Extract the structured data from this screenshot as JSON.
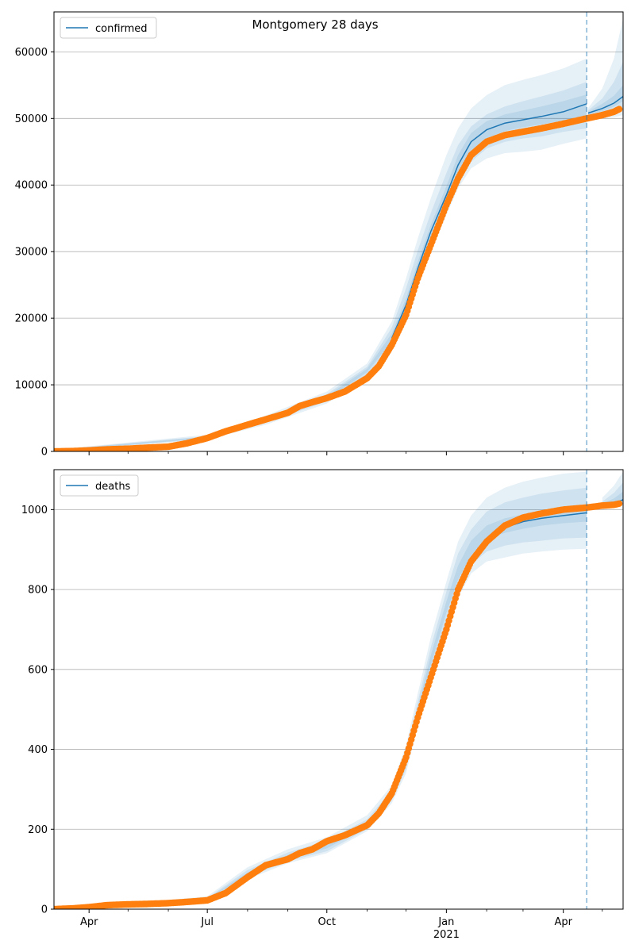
{
  "figure": {
    "title": "Montgomery 28 days",
    "colors": {
      "model_line": "#1f77b4",
      "band": "#1f77b4",
      "observed": "#ff7f0e",
      "grid": "#b0b0b0",
      "forecast_marker": "#1f77b4"
    },
    "x_axis": {
      "tick_labels": [
        {
          "date": "2020-04-01",
          "label": "Apr",
          "sublabel": ""
        },
        {
          "date": "2020-07-01",
          "label": "Jul",
          "sublabel": ""
        },
        {
          "date": "2020-10-01",
          "label": "Oct",
          "sublabel": ""
        },
        {
          "date": "2021-01-01",
          "label": "Jan",
          "sublabel": "2021"
        },
        {
          "date": "2021-04-01",
          "label": "Apr",
          "sublabel": ""
        }
      ],
      "minor_ticks": [
        "2020-05-01",
        "2020-06-01",
        "2020-08-01",
        "2020-09-01",
        "2020-11-01",
        "2020-12-01",
        "2021-02-01",
        "2021-03-01",
        "2021-05-01"
      ]
    }
  },
  "chart_data": [
    {
      "type": "line",
      "legend": "confirmed",
      "legend_position": "top-left",
      "xlim": [
        "2020-03-05",
        "2021-05-17"
      ],
      "ylim": [
        0,
        66000
      ],
      "yticks": [
        0,
        10000,
        20000,
        30000,
        40000,
        50000,
        60000
      ],
      "grid": "horizontal",
      "forecast_start": "2021-04-19",
      "model": {
        "x": [
          "2020-11-20",
          "2020-12-01",
          "2020-12-10",
          "2020-12-20",
          "2021-01-01",
          "2021-01-10",
          "2021-01-20",
          "2021-02-01",
          "2021-02-15",
          "2021-03-01",
          "2021-03-15",
          "2021-04-01",
          "2021-04-10",
          "2021-04-19",
          "2021-04-20",
          "2021-05-01",
          "2021-05-10",
          "2021-05-17"
        ],
        "y": [
          17000,
          22000,
          27500,
          33000,
          38500,
          43000,
          46500,
          48300,
          49300,
          49800,
          50300,
          51000,
          51600,
          52200,
          50800,
          51500,
          52300,
          53300
        ]
      },
      "bands": [
        {
          "x": [
            "2020-03-05",
            "2020-07-01",
            "2020-08-15",
            "2020-10-01",
            "2020-11-01",
            "2020-11-20",
            "2020-12-01",
            "2020-12-10",
            "2020-12-20",
            "2021-01-01",
            "2021-01-10",
            "2021-01-20",
            "2021-02-01",
            "2021-02-15",
            "2021-03-01",
            "2021-03-15",
            "2021-04-01",
            "2021-04-19",
            "2021-04-20",
            "2021-05-01",
            "2021-05-10",
            "2021-05-17"
          ],
          "lower": [
            0,
            1800,
            4000,
            7200,
            11000,
            15500,
            20000,
            25000,
            30000,
            35500,
            39500,
            42500,
            44000,
            44800,
            45000,
            45300,
            46200,
            47000,
            49800,
            50000,
            50200,
            50500
          ],
          "upper": [
            250,
            2500,
            5400,
            9000,
            13200,
            19500,
            26000,
            32000,
            38000,
            44500,
            48500,
            51500,
            53500,
            55000,
            55800,
            56500,
            57500,
            59000,
            51500,
            54500,
            59000,
            65000
          ]
        },
        {
          "x": [
            "2020-03-05",
            "2020-07-01",
            "2020-08-15",
            "2020-10-01",
            "2020-11-01",
            "2020-11-20",
            "2020-12-01",
            "2020-12-10",
            "2020-12-20",
            "2021-01-01",
            "2021-01-10",
            "2021-01-20",
            "2021-02-01",
            "2021-02-15",
            "2021-03-01",
            "2021-03-15",
            "2021-04-01",
            "2021-04-19",
            "2021-04-20",
            "2021-05-01",
            "2021-05-10",
            "2021-05-17"
          ],
          "lower": [
            0,
            1900,
            4300,
            7500,
            11500,
            16000,
            20800,
            26000,
            31000,
            36500,
            40500,
            43500,
            45500,
            46500,
            47000,
            47300,
            48000,
            48500,
            50200,
            50700,
            51200,
            51800
          ],
          "upper": [
            220,
            2300,
            5000,
            8600,
            12700,
            18600,
            24500,
            30200,
            35800,
            41800,
            46000,
            48800,
            50600,
            51800,
            52600,
            53300,
            54200,
            55500,
            51200,
            53000,
            55500,
            58500
          ]
        },
        {
          "x": [
            "2020-03-05",
            "2020-07-01",
            "2020-08-15",
            "2020-10-01",
            "2020-11-01",
            "2020-11-20",
            "2020-12-01",
            "2020-12-10",
            "2020-12-20",
            "2021-01-01",
            "2021-01-10",
            "2021-01-20",
            "2021-02-01",
            "2021-02-15",
            "2021-03-01",
            "2021-03-15",
            "2021-04-01",
            "2021-04-19",
            "2021-04-20",
            "2021-05-01",
            "2021-05-10",
            "2021-05-17"
          ],
          "lower": [
            0,
            2000,
            4500,
            7800,
            11900,
            16500,
            21500,
            26800,
            32000,
            37500,
            41800,
            45000,
            47000,
            48100,
            48700,
            49100,
            49700,
            50500,
            50600,
            51100,
            51800,
            52600
          ],
          "upper": [
            200,
            2200,
            4800,
            8300,
            12400,
            17700,
            23000,
            28500,
            34000,
            39800,
            44500,
            47800,
            49600,
            50600,
            51200,
            51800,
            52600,
            53600,
            51000,
            52200,
            53400,
            55000
          ]
        }
      ],
      "observed": {
        "x": [
          "2020-03-05",
          "2020-03-20",
          "2020-04-01",
          "2020-04-15",
          "2020-05-01",
          "2020-05-15",
          "2020-06-01",
          "2020-06-15",
          "2020-07-01",
          "2020-07-15",
          "2020-08-01",
          "2020-08-15",
          "2020-09-01",
          "2020-09-10",
          "2020-09-20",
          "2020-10-01",
          "2020-10-15",
          "2020-11-01",
          "2020-11-10",
          "2020-11-20",
          "2020-12-01",
          "2020-12-10",
          "2020-12-20",
          "2021-01-01",
          "2021-01-10",
          "2021-01-20",
          "2021-02-01",
          "2021-02-15",
          "2021-03-01",
          "2021-03-15",
          "2021-04-01",
          "2021-04-19",
          "2021-05-01",
          "2021-05-10",
          "2021-05-14"
        ],
        "y": [
          0,
          50,
          150,
          300,
          400,
          550,
          700,
          1200,
          2000,
          3000,
          4000,
          4800,
          5800,
          6800,
          7400,
          8000,
          9000,
          11000,
          12800,
          16000,
          20500,
          26000,
          31000,
          37000,
          41000,
          44500,
          46500,
          47500,
          48000,
          48500,
          49200,
          50000,
          50500,
          51000,
          51400
        ]
      }
    },
    {
      "type": "line",
      "legend": "deaths",
      "legend_position": "top-left",
      "xlim": [
        "2020-03-05",
        "2021-05-17"
      ],
      "ylim": [
        0,
        1100
      ],
      "yticks": [
        0,
        200,
        400,
        600,
        800,
        1000
      ],
      "grid": "horizontal",
      "forecast_start": "2021-04-19",
      "model": {
        "x": [
          "2021-02-15",
          "2021-03-01",
          "2021-03-15",
          "2021-04-01",
          "2021-04-19",
          "2021-05-01",
          "2021-05-10",
          "2021-05-17"
        ],
        "y": [
          955,
          970,
          978,
          985,
          992,
          1005,
          1015,
          1025
        ]
      },
      "bands": [
        {
          "x": [
            "2020-03-05",
            "2020-05-01",
            "2020-07-01",
            "2020-08-01",
            "2020-09-01",
            "2020-10-01",
            "2020-11-01",
            "2020-11-20",
            "2020-12-01",
            "2020-12-10",
            "2020-12-20",
            "2021-01-01",
            "2021-01-10",
            "2021-01-20",
            "2021-02-01",
            "2021-02-15",
            "2021-03-01",
            "2021-03-15",
            "2021-04-01",
            "2021-04-19",
            "2021-05-01",
            "2021-05-10",
            "2021-05-17"
          ],
          "lower": [
            0,
            8,
            20,
            75,
            115,
            140,
            195,
            265,
            340,
            460,
            570,
            700,
            780,
            840,
            870,
            880,
            890,
            895,
            900,
            902,
            1000,
            1005,
            1010
          ],
          "upper": [
            0,
            14,
            32,
            105,
            150,
            180,
            235,
            310,
            410,
            540,
            680,
            820,
            920,
            985,
            1030,
            1055,
            1070,
            1080,
            1090,
            1095,
            1030,
            1060,
            1095
          ]
        },
        {
          "x": [
            "2020-03-05",
            "2020-05-01",
            "2020-07-01",
            "2020-08-01",
            "2020-09-01",
            "2020-10-01",
            "2020-11-01",
            "2020-11-20",
            "2020-12-01",
            "2020-12-10",
            "2020-12-20",
            "2021-01-01",
            "2021-01-10",
            "2021-01-20",
            "2021-02-01",
            "2021-02-15",
            "2021-03-01",
            "2021-03-15",
            "2021-04-01",
            "2021-04-19",
            "2021-05-01",
            "2021-05-10",
            "2021-05-17"
          ],
          "lower": [
            0,
            9,
            22,
            80,
            120,
            145,
            200,
            272,
            350,
            475,
            590,
            720,
            800,
            862,
            895,
            910,
            918,
            922,
            928,
            930,
            1005,
            1010,
            1015
          ],
          "upper": [
            0,
            12,
            28,
            98,
            142,
            172,
            225,
            298,
            395,
            520,
            655,
            795,
            890,
            950,
            995,
            1018,
            1030,
            1040,
            1048,
            1055,
            1020,
            1042,
            1068
          ]
        },
        {
          "x": [
            "2020-03-05",
            "2020-05-01",
            "2020-07-01",
            "2020-08-01",
            "2020-09-01",
            "2020-10-01",
            "2020-11-01",
            "2020-11-20",
            "2020-12-01",
            "2020-12-10",
            "2020-12-20",
            "2021-01-01",
            "2021-01-10",
            "2021-01-20",
            "2021-02-01",
            "2021-02-15",
            "2021-03-01",
            "2021-03-15",
            "2021-04-01",
            "2021-04-19",
            "2021-05-01",
            "2021-05-10",
            "2021-05-17"
          ],
          "lower": [
            0,
            10,
            24,
            86,
            126,
            152,
            207,
            280,
            362,
            490,
            610,
            742,
            825,
            885,
            925,
            942,
            952,
            960,
            966,
            970,
            1008,
            1015,
            1022
          ],
          "upper": [
            0,
            11,
            26,
            92,
            136,
            165,
            217,
            290,
            382,
            505,
            635,
            770,
            860,
            922,
            960,
            978,
            988,
            996,
            1004,
            1010,
            1015,
            1028,
            1045
          ]
        }
      ],
      "observed": {
        "x": [
          "2020-03-05",
          "2020-03-20",
          "2020-04-01",
          "2020-04-15",
          "2020-05-01",
          "2020-05-15",
          "2020-06-01",
          "2020-06-15",
          "2020-07-01",
          "2020-07-15",
          "2020-08-01",
          "2020-08-15",
          "2020-09-01",
          "2020-09-10",
          "2020-09-20",
          "2020-10-01",
          "2020-10-15",
          "2020-11-01",
          "2020-11-10",
          "2020-11-20",
          "2020-12-01",
          "2020-12-10",
          "2020-12-20",
          "2021-01-01",
          "2021-01-10",
          "2021-01-20",
          "2021-02-01",
          "2021-02-15",
          "2021-03-01",
          "2021-03-15",
          "2021-04-01",
          "2021-04-19",
          "2021-05-01",
          "2021-05-10",
          "2021-05-14"
        ],
        "y": [
          0,
          2,
          5,
          10,
          12,
          13,
          15,
          18,
          22,
          40,
          80,
          110,
          125,
          140,
          150,
          170,
          185,
          210,
          240,
          290,
          380,
          480,
          580,
          700,
          800,
          870,
          920,
          960,
          980,
          990,
          1000,
          1005,
          1010,
          1012,
          1015
        ]
      }
    }
  ]
}
